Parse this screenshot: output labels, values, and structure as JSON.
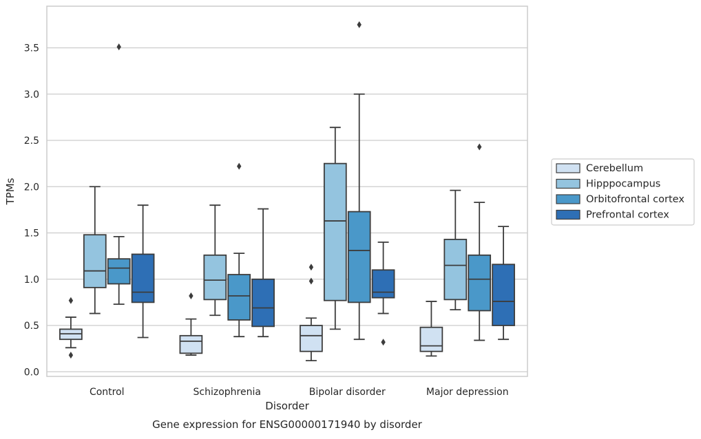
{
  "chart_data": {
    "type": "boxplot",
    "title": "",
    "caption": "Gene expression for ENSG00000171940 by disorder",
    "xlabel": "Disorder",
    "ylabel": "TPMs",
    "ylim": [
      -0.05,
      3.95
    ],
    "yticks": [
      0.0,
      0.5,
      1.0,
      1.5,
      2.0,
      2.5,
      3.0,
      3.5
    ],
    "ytick_labels": [
      "0.0",
      "0.5",
      "1.0",
      "1.5",
      "2.0",
      "2.5",
      "3.0",
      "3.5"
    ],
    "grid": "horizontal",
    "legend_position": "right",
    "categories": [
      "Control",
      "Schizophrenia",
      "Bipolar disorder",
      "Major depression"
    ],
    "series": [
      {
        "name": "Cerebellum",
        "color": "#d0e1f2",
        "boxes": [
          {
            "whisker_low": 0.26,
            "q1": 0.35,
            "median": 0.41,
            "q3": 0.46,
            "whisker_high": 0.59,
            "outliers": [
              0.77,
              0.18
            ]
          },
          {
            "whisker_low": 0.18,
            "q1": 0.2,
            "median": 0.33,
            "q3": 0.39,
            "whisker_high": 0.57,
            "outliers": [
              0.82
            ]
          },
          {
            "whisker_low": 0.12,
            "q1": 0.22,
            "median": 0.39,
            "q3": 0.5,
            "whisker_high": 0.58,
            "outliers": [
              1.13,
              0.98
            ]
          },
          {
            "whisker_low": 0.17,
            "q1": 0.22,
            "median": 0.28,
            "q3": 0.48,
            "whisker_high": 0.76,
            "outliers": []
          }
        ]
      },
      {
        "name": "Hipppocampus",
        "color": "#94c4df",
        "boxes": [
          {
            "whisker_low": 0.63,
            "q1": 0.91,
            "median": 1.09,
            "q3": 1.48,
            "whisker_high": 2.0,
            "outliers": []
          },
          {
            "whisker_low": 0.61,
            "q1": 0.78,
            "median": 0.99,
            "q3": 1.26,
            "whisker_high": 1.8,
            "outliers": []
          },
          {
            "whisker_low": 0.46,
            "q1": 0.77,
            "median": 1.63,
            "q3": 2.25,
            "whisker_high": 2.64,
            "outliers": []
          },
          {
            "whisker_low": 0.67,
            "q1": 0.78,
            "median": 1.15,
            "q3": 1.43,
            "whisker_high": 1.96,
            "outliers": []
          }
        ]
      },
      {
        "name": "Orbitofrontal cortex",
        "color": "#4a98c9",
        "boxes": [
          {
            "whisker_low": 0.73,
            "q1": 0.95,
            "median": 1.12,
            "q3": 1.22,
            "whisker_high": 1.46,
            "outliers": [
              3.51
            ]
          },
          {
            "whisker_low": 0.38,
            "q1": 0.56,
            "median": 0.82,
            "q3": 1.05,
            "whisker_high": 1.28,
            "outliers": [
              2.22
            ]
          },
          {
            "whisker_low": 0.35,
            "q1": 0.75,
            "median": 1.31,
            "q3": 1.73,
            "whisker_high": 3.0,
            "outliers": [
              3.75
            ]
          },
          {
            "whisker_low": 0.34,
            "q1": 0.66,
            "median": 1.0,
            "q3": 1.26,
            "whisker_high": 1.83,
            "outliers": [
              2.43
            ]
          }
        ]
      },
      {
        "name": "Prefrontal cortex",
        "color": "#2e6fb5",
        "boxes": [
          {
            "whisker_low": 0.37,
            "q1": 0.75,
            "median": 0.86,
            "q3": 1.27,
            "whisker_high": 1.8,
            "outliers": []
          },
          {
            "whisker_low": 0.38,
            "q1": 0.49,
            "median": 0.69,
            "q3": 1.0,
            "whisker_high": 1.76,
            "outliers": []
          },
          {
            "whisker_low": 0.63,
            "q1": 0.8,
            "median": 0.86,
            "q3": 1.1,
            "whisker_high": 1.4,
            "outliers": [
              0.32
            ]
          },
          {
            "whisker_low": 0.35,
            "q1": 0.5,
            "median": 0.76,
            "q3": 1.16,
            "whisker_high": 1.57,
            "outliers": []
          }
        ]
      }
    ]
  }
}
